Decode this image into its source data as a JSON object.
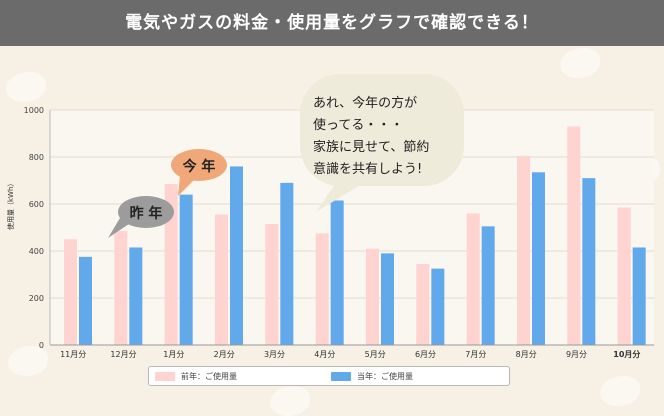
{
  "header": {
    "title": "電気やガスの料金・使用量をグラフで確認できる！"
  },
  "colors": {
    "prev": "#ffd3d0",
    "curr": "#62a9ec",
    "banner": "#6b6b6b",
    "bubble_gray": "#9c9c9c",
    "bubble_orange": "#f0a878",
    "bubble_big": "#efebdb"
  },
  "bubbles": {
    "last_year": "昨 年",
    "this_year": "今 年",
    "message_lines": [
      "あれ、今年の方が",
      "使ってる・・・",
      "家族に見せて、節約",
      "意識を共有しよう!"
    ]
  },
  "legend": {
    "prev_label": "前年：ご使用量",
    "curr_label": "当年：ご使用量"
  },
  "chart_data": {
    "type": "bar",
    "ylabel": "使用量（kWh）",
    "ylim": [
      0,
      1000
    ],
    "yticks": [
      "0",
      "200",
      "400",
      "600",
      "800",
      "1000"
    ],
    "categories": [
      "11月分",
      "12月分",
      "1月分",
      "2月分",
      "3月分",
      "4月分",
      "5月分",
      "6月分",
      "7月分",
      "8月分",
      "9月分",
      "10月分"
    ],
    "highlight_category": "10月分",
    "series": [
      {
        "name": "前年：ご使用量",
        "values": [
          450,
          485,
          685,
          555,
          515,
          475,
          410,
          345,
          560,
          805,
          930,
          585
        ]
      },
      {
        "name": "当年：ご使用量",
        "values": [
          375,
          415,
          640,
          760,
          690,
          615,
          390,
          325,
          505,
          735,
          710,
          415
        ]
      }
    ]
  }
}
